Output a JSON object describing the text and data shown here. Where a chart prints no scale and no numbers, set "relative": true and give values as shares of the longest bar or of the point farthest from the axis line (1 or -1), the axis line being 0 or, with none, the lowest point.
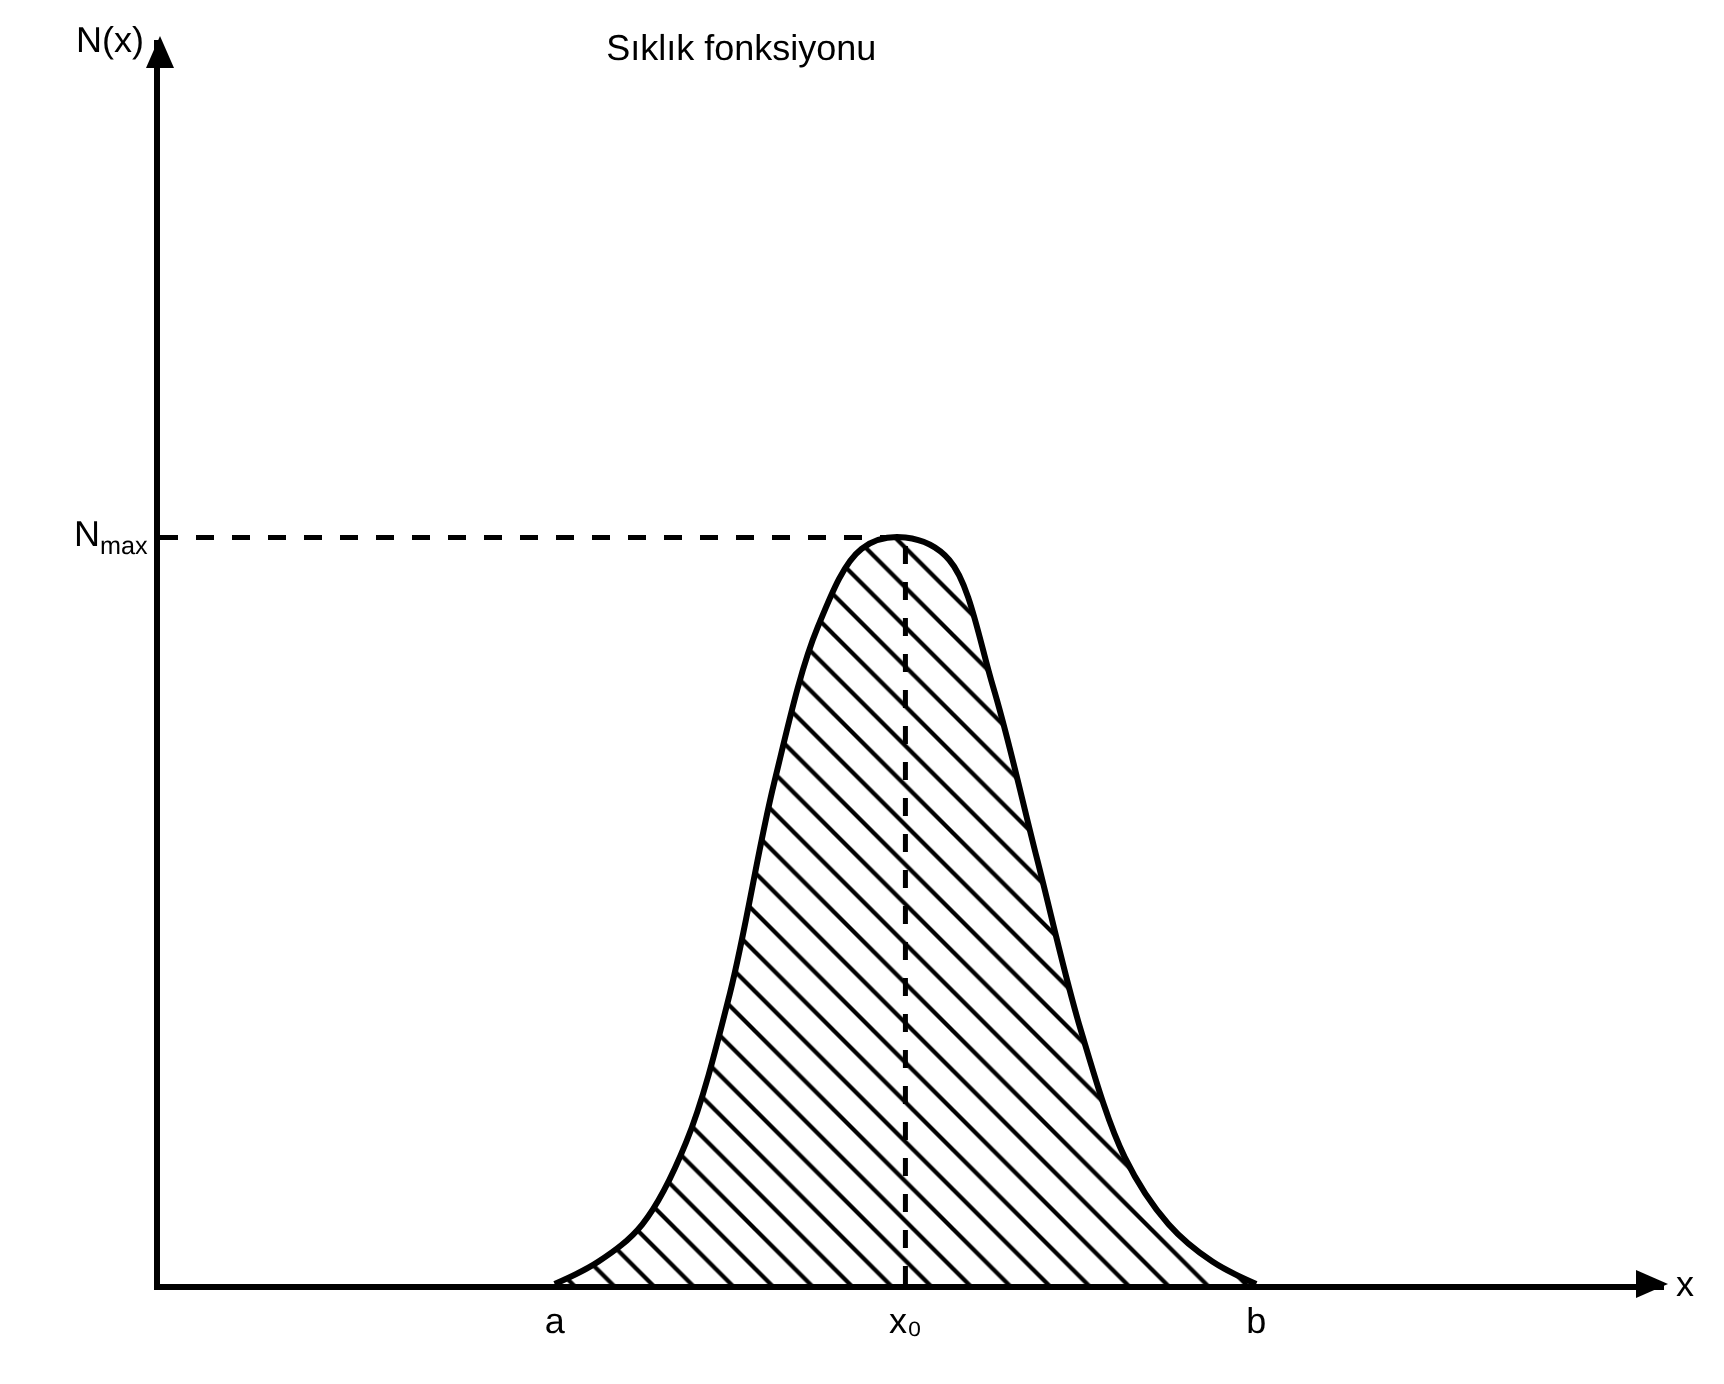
{
  "chart_data": {
    "type": "area",
    "title": "Sıklık fonksiyonu",
    "xlabel": "x",
    "annotations": [
      "N(x)"
    ],
    "relative": true,
    "categories": [
      null,
      null,
      null,
      null,
      null,
      null,
      null,
      null,
      "a",
      null,
      null,
      null,
      null,
      null,
      null,
      null,
      "x₀",
      null,
      null,
      null,
      null,
      null,
      null,
      null,
      "b",
      null,
      null,
      null,
      null,
      null,
      null,
      null,
      null
    ],
    "values": [
      null,
      null,
      null,
      null,
      null,
      null,
      null,
      null,
      0.0,
      0.03,
      0.08,
      0.19,
      0.39,
      0.67,
      0.88,
      0.985,
      1.0,
      0.97,
      0.8,
      0.57,
      0.34,
      0.17,
      0.08,
      0.03,
      0.0,
      null,
      null,
      null,
      null,
      null,
      null,
      null,
      null
    ],
    "color": "#000000",
    "ref_lines": [
      {
        "axis": "y",
        "value": 1,
        "label": "N$_{max}$",
        "line_style": "dashed"
      },
      {
        "axis": "x",
        "value": "x₀",
        "line_style": "dashed"
      }
    ],
    "grid": false,
    "legend": false
  }
}
